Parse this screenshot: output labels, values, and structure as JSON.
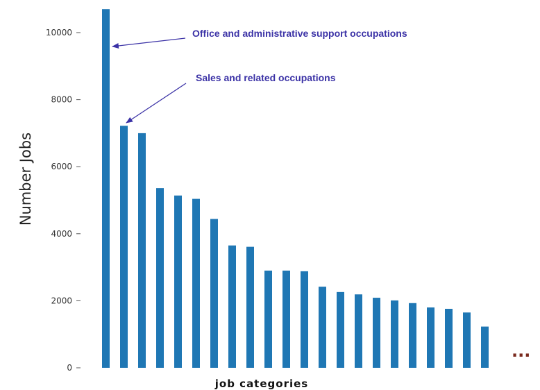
{
  "chart_data": {
    "type": "bar",
    "title": "",
    "xlabel": "job categories",
    "ylabel": "Number Jobs",
    "ylim": [
      0,
      11000
    ],
    "yticks": [
      0,
      2000,
      4000,
      6000,
      8000,
      10000
    ],
    "tick_labels": [
      "0",
      "2000",
      "4000",
      "6000",
      "8000",
      "10000"
    ],
    "bar_color": "#1f77b4",
    "values": [
      10700,
      7220,
      7000,
      5360,
      5140,
      5040,
      4440,
      3650,
      3610,
      2900,
      2900,
      2880,
      2420,
      2260,
      2190,
      2090,
      2010,
      1930,
      1800,
      1760,
      1650,
      1230
    ],
    "annotations": [
      {
        "text": "Office and administrative support occupations",
        "bar_index": 0
      },
      {
        "text": "Sales and related occupations",
        "bar_index": 1
      }
    ],
    "continuation_mark": "..."
  }
}
